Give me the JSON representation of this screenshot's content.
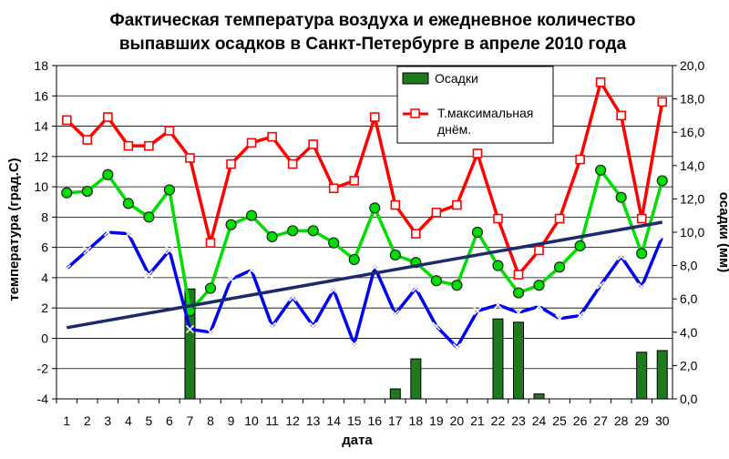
{
  "chart_data": {
    "type": "line",
    "title_lines": [
      "Фактическая температура воздуха и ежедневное количество",
      "выпавших осадков в Санкт-Петербурге в апреле 2010 года"
    ],
    "xlabel": "дата",
    "ylabel_left": "температура (град.С)",
    "ylabel_right": "осадки (мм)",
    "x": [
      1,
      2,
      3,
      4,
      5,
      6,
      7,
      8,
      9,
      10,
      11,
      12,
      13,
      14,
      15,
      16,
      17,
      18,
      19,
      20,
      21,
      22,
      23,
      24,
      25,
      26,
      27,
      28,
      29,
      30
    ],
    "ylim_left": [
      -4,
      18
    ],
    "yticks_left": [
      "-4",
      "-2",
      "0",
      "2",
      "4",
      "6",
      "8",
      "10",
      "12",
      "14",
      "16",
      "18"
    ],
    "ylim_right": [
      0,
      20
    ],
    "yticks_right": [
      "0,0",
      "2,0",
      "4,0",
      "6,0",
      "8,0",
      "10,0",
      "12,0",
      "14,0",
      "16,0",
      "18,0",
      "20,0"
    ],
    "grid": "horizontal",
    "legend_position": "top-center",
    "bar_series": {
      "name": "Осадки",
      "axis": "right",
      "color": "#1f7a1f",
      "values": [
        0,
        0,
        0,
        0,
        0,
        0,
        6.6,
        0,
        0,
        0,
        0,
        0,
        0,
        0,
        0,
        0,
        0.6,
        2.4,
        0,
        0,
        0,
        4.8,
        4.6,
        0.3,
        0,
        0,
        0,
        0,
        2.8,
        2.9
      ]
    },
    "series": [
      {
        "name": "Т.максимальная днём.",
        "legend_line1": "Т.максимальная",
        "legend_line2": "днём.",
        "color": "#ff0000",
        "marker": "square",
        "values": [
          14.4,
          13.1,
          14.6,
          12.7,
          12.7,
          13.7,
          11.9,
          6.3,
          11.5,
          12.9,
          13.3,
          11.5,
          12.8,
          9.9,
          10.4,
          14.6,
          8.8,
          6.9,
          8.3,
          8.8,
          12.2,
          7.9,
          4.2,
          5.8,
          7.9,
          11.8,
          16.9,
          14.7,
          7.9,
          15.6
        ]
      },
      {
        "name": "",
        "color": "#00dd00",
        "marker": "circle",
        "values": [
          9.6,
          9.7,
          10.8,
          8.9,
          8.0,
          9.8,
          1.8,
          3.3,
          7.5,
          8.1,
          6.7,
          7.1,
          7.1,
          6.3,
          5.2,
          8.6,
          5.5,
          5.0,
          3.8,
          3.5,
          7.0,
          4.8,
          3.0,
          3.5,
          4.7,
          6.1,
          11.1,
          9.3,
          5.6,
          10.4
        ]
      },
      {
        "name": "",
        "color": "#0000ee",
        "marker": "x",
        "values": [
          4.6,
          5.8,
          7.0,
          6.9,
          4.2,
          5.8,
          0.6,
          0.4,
          3.9,
          4.5,
          0.8,
          2.7,
          0.8,
          3.2,
          -0.4,
          4.7,
          1.6,
          3.3,
          0.8,
          -0.6,
          1.8,
          2.2,
          1.7,
          2.1,
          1.3,
          1.5,
          3.5,
          5.4,
          3.4,
          6.7
        ]
      },
      {
        "name": "",
        "color": "#1a2a6c",
        "marker": "none",
        "values": [
          0.7,
          0.94,
          1.18,
          1.42,
          1.66,
          1.9,
          2.14,
          2.38,
          2.62,
          2.86,
          3.1,
          3.34,
          3.58,
          3.82,
          4.06,
          4.3,
          4.54,
          4.78,
          5.02,
          5.26,
          5.5,
          5.74,
          5.98,
          6.22,
          6.46,
          6.7,
          6.94,
          7.18,
          7.42,
          7.66
        ]
      }
    ]
  }
}
